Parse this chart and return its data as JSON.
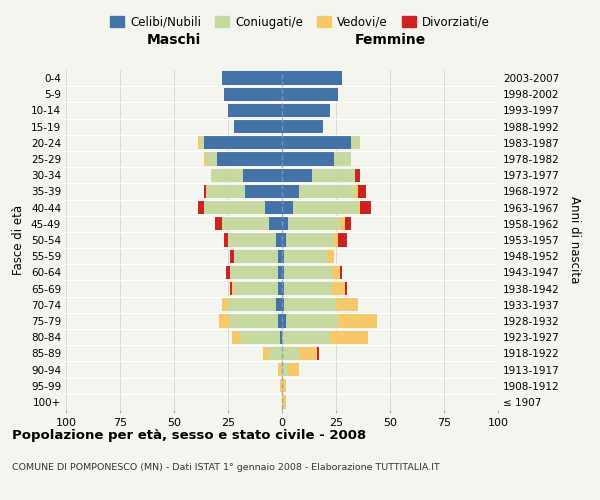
{
  "age_groups": [
    "100+",
    "95-99",
    "90-94",
    "85-89",
    "80-84",
    "75-79",
    "70-74",
    "65-69",
    "60-64",
    "55-59",
    "50-54",
    "45-49",
    "40-44",
    "35-39",
    "30-34",
    "25-29",
    "20-24",
    "15-19",
    "10-14",
    "5-9",
    "0-4"
  ],
  "birth_years": [
    "≤ 1907",
    "1908-1912",
    "1913-1917",
    "1918-1922",
    "1923-1927",
    "1928-1932",
    "1933-1937",
    "1938-1942",
    "1943-1947",
    "1948-1952",
    "1953-1957",
    "1958-1962",
    "1963-1967",
    "1968-1972",
    "1973-1977",
    "1978-1982",
    "1983-1987",
    "1988-1992",
    "1993-1997",
    "1998-2002",
    "2003-2007"
  ],
  "colors": {
    "celibi": "#4472a8",
    "coniugati": "#c5d9a0",
    "vedovi": "#f5c96a",
    "divorziati": "#cc2222"
  },
  "male": {
    "celibi": [
      0,
      0,
      0,
      0,
      1,
      2,
      3,
      2,
      2,
      2,
      3,
      6,
      8,
      17,
      18,
      30,
      36,
      22,
      25,
      27,
      28
    ],
    "coniugati": [
      0,
      0,
      0,
      6,
      18,
      22,
      22,
      20,
      22,
      20,
      22,
      22,
      28,
      18,
      15,
      5,
      2,
      0,
      0,
      0,
      0
    ],
    "vedovi": [
      0,
      1,
      2,
      3,
      4,
      5,
      3,
      1,
      0,
      0,
      0,
      0,
      0,
      0,
      0,
      1,
      1,
      0,
      0,
      0,
      0
    ],
    "divorziati": [
      0,
      0,
      0,
      0,
      0,
      0,
      0,
      1,
      2,
      2,
      2,
      3,
      3,
      1,
      0,
      0,
      0,
      0,
      0,
      0,
      0
    ]
  },
  "female": {
    "celibi": [
      0,
      0,
      0,
      0,
      0,
      2,
      1,
      1,
      1,
      1,
      2,
      3,
      5,
      8,
      14,
      24,
      32,
      19,
      22,
      26,
      28
    ],
    "coniugati": [
      0,
      0,
      3,
      8,
      22,
      24,
      24,
      22,
      22,
      20,
      22,
      24,
      30,
      26,
      20,
      8,
      4,
      0,
      0,
      0,
      0
    ],
    "vedovi": [
      2,
      2,
      5,
      8,
      18,
      18,
      10,
      6,
      4,
      3,
      2,
      2,
      1,
      1,
      0,
      0,
      0,
      0,
      0,
      0,
      0
    ],
    "divorziati": [
      0,
      0,
      0,
      1,
      0,
      0,
      0,
      1,
      1,
      0,
      4,
      3,
      5,
      4,
      2,
      0,
      0,
      0,
      0,
      0,
      0
    ]
  },
  "xlim": 100,
  "title": "Popolazione per età, sesso e stato civile - 2008",
  "subtitle": "COMUNE DI POMPONESCO (MN) - Dati ISTAT 1° gennaio 2008 - Elaborazione TUTTITALIA.IT",
  "ylabel_left": "Fasce di età",
  "ylabel_right": "Anni di nascita",
  "header_male": "Maschi",
  "header_female": "Femmine",
  "legend_labels": [
    "Celibi/Nubili",
    "Coniugati/e",
    "Vedovi/e",
    "Divorziati/e"
  ],
  "bg_color": "#f5f5f0"
}
